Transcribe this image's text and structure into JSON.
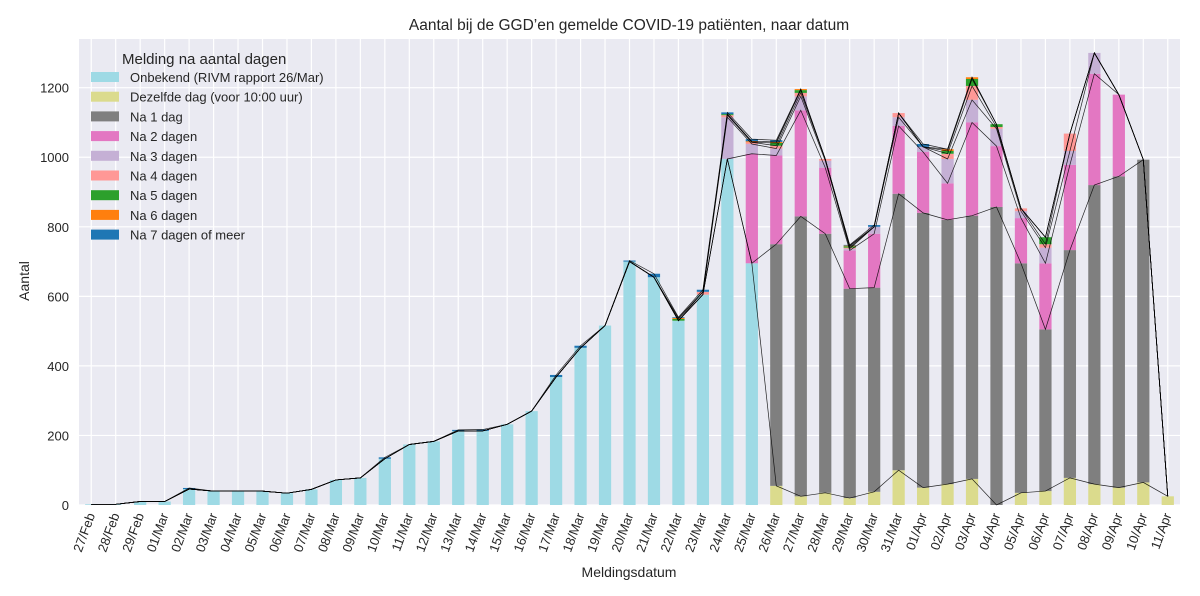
{
  "chart_data": {
    "type": "bar",
    "stacked": true,
    "title": "Aantal bij de GGD’en gemelde COVID-19 patiënten, naar datum",
    "xlabel": "Meldingsdatum",
    "ylabel": "Aantal",
    "ylim": [
      0,
      1340
    ],
    "yticks": [
      0,
      200,
      400,
      600,
      800,
      1000,
      1200
    ],
    "grid": true,
    "legend": {
      "title": "Melding na aantal dagen",
      "placement": "top-left"
    },
    "categories": [
      "27/Feb",
      "28/Feb",
      "29/Feb",
      "01/Mar",
      "02/Mar",
      "03/Mar",
      "04/Mar",
      "05/Mar",
      "06/Mar",
      "07/Mar",
      "08/Mar",
      "09/Mar",
      "10/Mar",
      "11/Mar",
      "12/Mar",
      "13/Mar",
      "14/Mar",
      "15/Mar",
      "16/Mar",
      "17/Mar",
      "18/Mar",
      "19/Mar",
      "20/Mar",
      "21/Mar",
      "22/Mar",
      "23/Mar",
      "24/Mar",
      "25/Mar",
      "26/Mar",
      "27/Mar",
      "28/Mar",
      "29/Mar",
      "30/Mar",
      "31/Mar",
      "01/Apr",
      "02/Apr",
      "03/Apr",
      "04/Apr",
      "05/Apr",
      "06/Apr",
      "07/Apr",
      "08/Apr",
      "09/Apr",
      "10/Apr",
      "11/Apr"
    ],
    "series": [
      {
        "name": "Onbekend (RIVM rapport 26/Mar)",
        "color": "#9edae5",
        "values": [
          2,
          2,
          10,
          10,
          46,
          40,
          40,
          40,
          34,
          45,
          72,
          78,
          133,
          174,
          183,
          213,
          213,
          232,
          270,
          368,
          452,
          516,
          700,
          655,
          530,
          605,
          995,
          695,
          0,
          0,
          0,
          0,
          0,
          0,
          0,
          0,
          0,
          0,
          0,
          0,
          0,
          0,
          0,
          0,
          0
        ]
      },
      {
        "name": "Dezelfde dag (voor 10:00 uur)",
        "color": "#dbdb8d",
        "values": [
          0,
          0,
          0,
          0,
          0,
          0,
          0,
          0,
          0,
          0,
          0,
          0,
          0,
          0,
          0,
          0,
          0,
          0,
          0,
          0,
          0,
          0,
          0,
          0,
          0,
          0,
          0,
          0,
          55,
          25,
          35,
          20,
          38,
          100,
          50,
          60,
          75,
          0,
          35,
          40,
          78,
          60,
          50,
          65,
          25
        ]
      },
      {
        "name": "Na 1 dag",
        "color": "#7f7f7f",
        "values": [
          0,
          0,
          0,
          0,
          0,
          0,
          0,
          0,
          0,
          0,
          0,
          0,
          0,
          0,
          0,
          0,
          0,
          0,
          0,
          0,
          0,
          0,
          0,
          0,
          0,
          0,
          0,
          0,
          695,
          805,
          745,
          602,
          587,
          795,
          790,
          760,
          757,
          857,
          660,
          465,
          655,
          860,
          895,
          928,
          0
        ]
      },
      {
        "name": "Na 2 dagen",
        "color": "#e377c2",
        "values": [
          0,
          0,
          0,
          0,
          0,
          0,
          0,
          0,
          0,
          0,
          0,
          0,
          0,
          0,
          0,
          0,
          0,
          0,
          0,
          0,
          0,
          0,
          0,
          0,
          0,
          0,
          0,
          315,
          255,
          305,
          190,
          110,
          155,
          195,
          175,
          105,
          268,
          175,
          130,
          190,
          245,
          320,
          235,
          0,
          0
        ]
      },
      {
        "name": "Na 3 dagen",
        "color": "#c5b0d5",
        "values": [
          0,
          0,
          0,
          0,
          0,
          0,
          0,
          0,
          0,
          0,
          0,
          0,
          0,
          0,
          0,
          0,
          0,
          0,
          0,
          0,
          0,
          0,
          0,
          0,
          0,
          0,
          120,
          28,
          20,
          40,
          20,
          5,
          20,
          25,
          15,
          70,
          65,
          50,
          20,
          45,
          40,
          60,
          0,
          0,
          0
        ]
      },
      {
        "name": "Na 4 dagen",
        "color": "#ff9896",
        "values": [
          0,
          0,
          0,
          0,
          0,
          0,
          0,
          0,
          0,
          0,
          0,
          0,
          0,
          0,
          0,
          0,
          0,
          0,
          0,
          0,
          0,
          0,
          0,
          0,
          0,
          8,
          6,
          5,
          8,
          10,
          5,
          3,
          0,
          12,
          0,
          15,
          40,
          5,
          8,
          10,
          50,
          0,
          0,
          0,
          0
        ]
      },
      {
        "name": "Na 5 dagen",
        "color": "#2ca02c",
        "values": [
          0,
          0,
          0,
          0,
          0,
          0,
          0,
          0,
          0,
          0,
          0,
          0,
          0,
          0,
          0,
          0,
          0,
          0,
          0,
          0,
          0,
          0,
          0,
          0,
          5,
          0,
          3,
          0,
          8,
          8,
          0,
          4,
          0,
          0,
          0,
          8,
          20,
          8,
          0,
          20,
          0,
          0,
          0,
          0,
          0
        ]
      },
      {
        "name": "Na 6 dagen",
        "color": "#ff7f0e",
        "values": [
          0,
          0,
          0,
          0,
          0,
          0,
          0,
          0,
          0,
          0,
          0,
          0,
          0,
          0,
          0,
          0,
          0,
          0,
          0,
          0,
          0,
          0,
          0,
          0,
          3,
          0,
          0,
          3,
          3,
          3,
          0,
          2,
          0,
          0,
          0,
          5,
          5,
          0,
          0,
          0,
          0,
          0,
          0,
          0,
          0
        ]
      },
      {
        "name": "Na 7 dagen of meer",
        "color": "#1f77b4",
        "values": [
          0,
          0,
          0,
          0,
          3,
          0,
          0,
          0,
          0,
          0,
          0,
          0,
          4,
          0,
          0,
          3,
          4,
          0,
          0,
          6,
          6,
          0,
          3,
          10,
          2,
          6,
          5,
          6,
          5,
          0,
          0,
          2,
          5,
          0,
          8,
          0,
          0,
          0,
          0,
          0,
          0,
          0,
          0,
          0,
          0
        ]
      }
    ]
  }
}
